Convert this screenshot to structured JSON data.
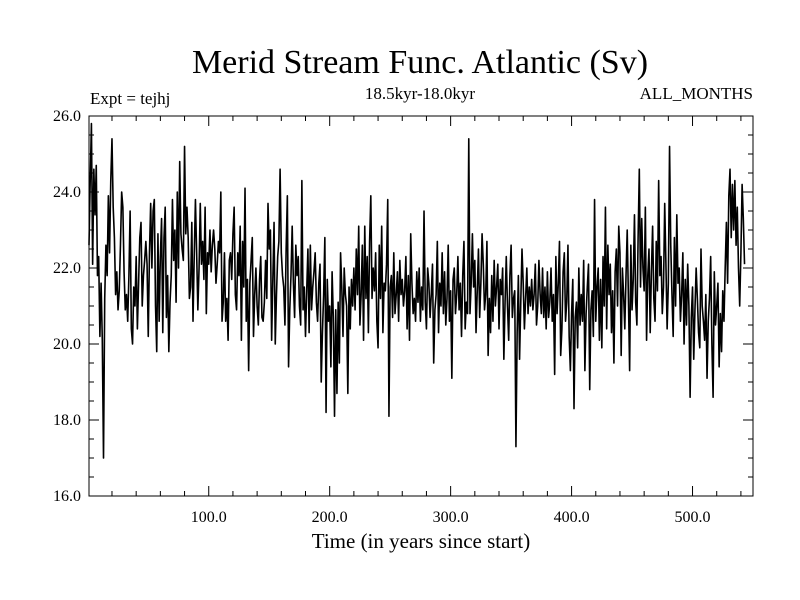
{
  "chart_data": {
    "type": "line",
    "title": "Merid Stream Func. Atlantic (Sv)",
    "subtitle": "18.5kyr-18.0kyr",
    "left_label": "Expt = tejhj",
    "right_label": "ALL_MONTHS",
    "xlabel": "Time (in years since start)",
    "ylabel": "",
    "xlim": [
      1,
      550
    ],
    "ylim": [
      16.0,
      26.0
    ],
    "xticks": [
      100,
      200,
      300,
      400,
      500
    ],
    "xtick_labels": [
      "100.0",
      "200.0",
      "300.0",
      "400.0",
      "500.0"
    ],
    "yticks": [
      16,
      18,
      20,
      22,
      24,
      26
    ],
    "ytick_labels": [
      "16.0",
      "18.0",
      "20.0",
      "22.0",
      "24.0",
      "26.0"
    ],
    "grid": false,
    "series": [
      {
        "name": "Merid Stream Func. Atlantic",
        "color": "#000000",
        "x_start": 1,
        "x_step": 1,
        "values": [
          22.6,
          24.3,
          25.8,
          22.1,
          24.6,
          23.4,
          24.7,
          21.8,
          22.3,
          20.2,
          21.6,
          20.1,
          17.0,
          21.2,
          22.6,
          21.8,
          23.9,
          22.4,
          24.3,
          25.4,
          23.6,
          22.8,
          21.3,
          21.9,
          20.9,
          21.4,
          22.6,
          24.0,
          23.6,
          21.9,
          20.9,
          21.3,
          20.6,
          21.8,
          23.5,
          20.4,
          20.0,
          21.5,
          21.0,
          22.3,
          20.4,
          21.6,
          22.8,
          23.2,
          21.0,
          21.8,
          22.2,
          22.7,
          22.1,
          20.2,
          22.4,
          23.7,
          22.0,
          23.5,
          23.8,
          21.0,
          19.8,
          22.9,
          20.6,
          22.3,
          23.3,
          20.3,
          22.8,
          23.6,
          20.7,
          21.8,
          19.8,
          21.1,
          21.8,
          23.8,
          22.2,
          23.0,
          21.1,
          24.0,
          22.0,
          24.8,
          22.9,
          22.5,
          22.2,
          25.2,
          22.9,
          23.6,
          22.8,
          21.2,
          21.5,
          23.2,
          20.6,
          22.3,
          23.8,
          22.4,
          20.9,
          22.0,
          23.7,
          22.1,
          22.7,
          21.7,
          23.6,
          20.8,
          22.4,
          22.1,
          23.0,
          21.9,
          22.6,
          23.0,
          22.5,
          21.6,
          22.1,
          22.7,
          22.4,
          24.0,
          20.6,
          21.1,
          22.4,
          20.6,
          21.2,
          20.1,
          22.2,
          22.4,
          21.7,
          22.9,
          23.6,
          21.3,
          20.9,
          22.4,
          21.8,
          23.1,
          20.1,
          22.7,
          21.5,
          24.1,
          20.6,
          21.7,
          19.3,
          21.6,
          22.2,
          22.8,
          20.2,
          21.3,
          22.0,
          21.0,
          20.5,
          21.7,
          22.3,
          20.7,
          20.6,
          21.1,
          22.2,
          21.2,
          23.7,
          22.5,
          23.0,
          20.1,
          21.7,
          23.2,
          20.0,
          21.3,
          22.3,
          22.7,
          24.6,
          22.4,
          21.8,
          21.5,
          20.5,
          22.5,
          23.9,
          19.4,
          20.9,
          21.8,
          23.1,
          21.6,
          20.7,
          22.6,
          21.8,
          22.3,
          21.0,
          20.5,
          24.3,
          20.9,
          21.5,
          20.2,
          21.4,
          22.5,
          20.3,
          22.6,
          20.9,
          21.5,
          21.9,
          22.4,
          21.1,
          20.6,
          21.6,
          22.1,
          19.0,
          20.3,
          21.3,
          22.8,
          18.2,
          21.7,
          20.6,
          21.0,
          19.4,
          21.9,
          20.7,
          18.1,
          20.9,
          18.7,
          21.1,
          19.5,
          22.4,
          21.5,
          20.2,
          22.0,
          21.3,
          21.0,
          18.7,
          21.5,
          20.4,
          21.7,
          21.0,
          22.0,
          20.9,
          22.5,
          21.3,
          23.1,
          20.5,
          21.3,
          22.6,
          20.1,
          23.1,
          21.2,
          22.3,
          20.3,
          22.7,
          23.9,
          21.2,
          22.0,
          21.4,
          22.4,
          20.6,
          19.9,
          22.6,
          21.2,
          23.1,
          20.3,
          21.6,
          21.4,
          22.1,
          23.8,
          18.1,
          21.5,
          21.8,
          20.7,
          22.4,
          20.8,
          21.3,
          21.9,
          20.6,
          22.2,
          21.3,
          21.7,
          21.0,
          21.4,
          22.3,
          20.4,
          21.8,
          20.1,
          22.9,
          21.6,
          20.8,
          21.2,
          20.6,
          21.9,
          21.1,
          22.0,
          20.6,
          21.5,
          20.9,
          23.5,
          21.1,
          20.4,
          22.0,
          21.6,
          20.7,
          21.3,
          22.1,
          19.5,
          20.9,
          21.3,
          22.7,
          20.3,
          21.6,
          21.0,
          22.4,
          20.8,
          21.9,
          20.5,
          21.2,
          22.6,
          20.6,
          21.4,
          19.1,
          21.7,
          22.0,
          20.8,
          21.3,
          22.3,
          20.9,
          21.6,
          20.2,
          21.8,
          22.7,
          20.4,
          21.1,
          20.8,
          25.4,
          20.8,
          21.6,
          22.9,
          21.5,
          22.2,
          20.3,
          21.4,
          22.5,
          20.7,
          21.6,
          22.9,
          22.1,
          20.9,
          21.3,
          22.7,
          19.7,
          21.2,
          20.3,
          21.8,
          20.6,
          22.2,
          21.0,
          21.5,
          22.1,
          20.4,
          21.7,
          21.3,
          22.0,
          19.6,
          21.1,
          22.3,
          21.0,
          20.1,
          21.8,
          22.6,
          20.7,
          21.2,
          21.4,
          17.3,
          20.3,
          21.8,
          19.6,
          21.1,
          22.5,
          21.6,
          20.4,
          21.2,
          22.0,
          20.8,
          21.5,
          21.0,
          21.7,
          20.9,
          21.3,
          22.1,
          20.5,
          21.0,
          22.2,
          21.3,
          20.8,
          22.0,
          20.7,
          21.5,
          20.4,
          21.9,
          20.7,
          21.1,
          22.0,
          20.6,
          21.3,
          19.2,
          22.3,
          20.8,
          21.6,
          22.7,
          19.7,
          20.4,
          21.9,
          22.4,
          20.6,
          21.1,
          22.6,
          20.2,
          19.3,
          20.8,
          21.7,
          18.3,
          20.7,
          21.1,
          19.9,
          22.0,
          20.5,
          21.3,
          20.6,
          22.2,
          19.3,
          20.8,
          21.5,
          22.1,
          18.8,
          20.9,
          21.4,
          20.2,
          23.8,
          20.6,
          21.5,
          22.0,
          20.1,
          21.7,
          19.9,
          22.3,
          21.0,
          23.6,
          20.4,
          22.6,
          21.3,
          22.1,
          20.3,
          21.4,
          19.5,
          21.9,
          22.5,
          21.0,
          23.1,
          22.4,
          19.7,
          22.0,
          21.3,
          20.4,
          21.8,
          23.0,
          21.2,
          19.3,
          22.6,
          20.9,
          21.7,
          23.4,
          21.1,
          20.5,
          22.8,
          24.6,
          21.5,
          23.3,
          22.0,
          21.4,
          23.6,
          20.1,
          21.8,
          22.5,
          20.3,
          21.9,
          23.1,
          21.2,
          20.6,
          22.7,
          21.4,
          24.3,
          21.8,
          22.3,
          20.8,
          21.5,
          23.7,
          22.1,
          20.4,
          21.6,
          25.2,
          22.6,
          21.3,
          20.2,
          22.8,
          21.0,
          23.4,
          21.6,
          22.0,
          20.6,
          21.3,
          22.4,
          20.0,
          21.7,
          20.5,
          22.1,
          21.0,
          18.6,
          20.7,
          21.5,
          19.6,
          20.9,
          22.0,
          21.2,
          20.3,
          19.9,
          22.5,
          21.0,
          20.6,
          20.1,
          21.3,
          19.1,
          20.6,
          21.2,
          22.3,
          20.0,
          18.6,
          21.9,
          20.5,
          21.0,
          21.6,
          19.4,
          20.8,
          19.8,
          21.4,
          20.6,
          22.0,
          23.2,
          21.6,
          23.9,
          24.6,
          22.8,
          24.2,
          23.0,
          24.3,
          22.6,
          23.6,
          22.0,
          21.0,
          22.4,
          24.2,
          23.3,
          22.1
        ]
      }
    ]
  }
}
